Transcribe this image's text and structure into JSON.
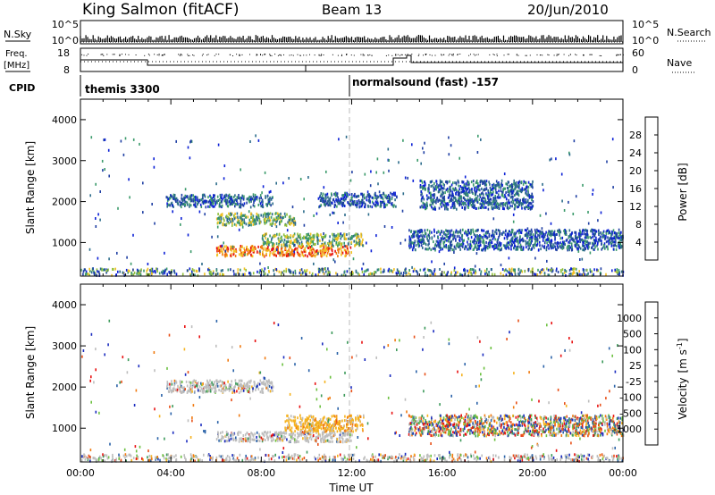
{
  "header": {
    "station": "King Salmon (fitACF)",
    "beam": "Beam 13",
    "date": "20/Jun/2010"
  },
  "noise_panel": {
    "left_label": "N.Sky",
    "right_label": "N.Search",
    "left_ticks": [
      "10^5",
      "10^0"
    ],
    "right_ticks": [
      "10^5",
      "10^0"
    ]
  },
  "freq_panel": {
    "left_label_line1": "Freq.",
    "left_label_line2": "[MHz]",
    "right_label": "Nave",
    "left_ticks": [
      "18",
      "8"
    ],
    "right_ticks": [
      "60",
      "0"
    ]
  },
  "cpid": {
    "label": "CPID",
    "modes": [
      {
        "name": "themis 3300",
        "start_hour": 0
      },
      {
        "name": "normalsound (fast) -157",
        "start_hour": 12
      }
    ]
  },
  "chart_data": [
    {
      "type": "heatmap",
      "title": "Power",
      "ylabel": "Slant Range [km]",
      "xlabel": "",
      "ylim": [
        180,
        4500
      ],
      "x_range_hours": [
        0,
        24
      ],
      "yticks": [
        "1000",
        "2000",
        "3000",
        "4000"
      ],
      "colorbar": {
        "label": "Power [dB]",
        "ticks": [
          "4",
          "8",
          "12",
          "16",
          "20",
          "24",
          "28"
        ],
        "colors": [
          "#0a1fd6",
          "#1f3fa3",
          "#2b6b8a",
          "#3a9a6a",
          "#8fbf3a",
          "#f0c020",
          "#f07a10",
          "#e81010"
        ]
      },
      "regions": [
        {
          "t": [
            3.8,
            8.5
          ],
          "r": [
            1850,
            2150
          ],
          "level": "low"
        },
        {
          "t": [
            6.0,
            9.5
          ],
          "r": [
            1400,
            1700
          ],
          "level": "mid"
        },
        {
          "t": [
            6.0,
            12.0
          ],
          "r": [
            650,
            900
          ],
          "level": "high"
        },
        {
          "t": [
            8.0,
            12.5
          ],
          "r": [
            900,
            1200
          ],
          "level": "mid"
        },
        {
          "t": [
            10.5,
            14.0
          ],
          "r": [
            1850,
            2200
          ],
          "level": "low"
        },
        {
          "t": [
            14.5,
            24.0
          ],
          "r": [
            800,
            1300
          ],
          "level": "low"
        },
        {
          "t": [
            15.0,
            20.0
          ],
          "r": [
            1800,
            2500
          ],
          "level": "low"
        },
        {
          "t": [
            0.0,
            24.0
          ],
          "r": [
            180,
            350
          ],
          "level": "ground"
        }
      ]
    },
    {
      "type": "heatmap",
      "title": "Velocity",
      "ylabel": "Slant Range [km]",
      "xlabel": "Time UT",
      "ylim": [
        180,
        4500
      ],
      "x_range_hours": [
        0,
        24
      ],
      "xticks": [
        "00:00",
        "04:00",
        "08:00",
        "12:00",
        "16:00",
        "20:00",
        "00:00"
      ],
      "yticks": [
        "1000",
        "2000",
        "3000",
        "4000"
      ],
      "colorbar": {
        "label": "Velocity [m s^-1]",
        "label_main": "Velocity",
        "label_unit": "[m s",
        "label_exp": "-1",
        "label_close": "]",
        "ticks": [
          "1000",
          "500",
          "100",
          "25",
          "-25",
          "-100",
          "-500",
          "-1000"
        ],
        "colors": [
          "#1a2bbf",
          "#2a62a8",
          "#3c9a5a",
          "#6cc040",
          "#bdbdbd",
          "#f5b21e",
          "#f07a10",
          "#e85018",
          "#e81010"
        ]
      },
      "regions": [
        {
          "t": [
            3.8,
            8.5
          ],
          "r": [
            1850,
            2150
          ],
          "level": "grey"
        },
        {
          "t": [
            6.0,
            12.0
          ],
          "r": [
            650,
            900
          ],
          "level": "grey"
        },
        {
          "t": [
            9.0,
            12.5
          ],
          "r": [
            900,
            1300
          ],
          "level": "orange"
        },
        {
          "t": [
            14.5,
            24.0
          ],
          "r": [
            800,
            1300
          ],
          "level": "mixed"
        },
        {
          "t": [
            0.0,
            24.0
          ],
          "r": [
            180,
            350
          ],
          "level": "ground"
        }
      ]
    }
  ]
}
